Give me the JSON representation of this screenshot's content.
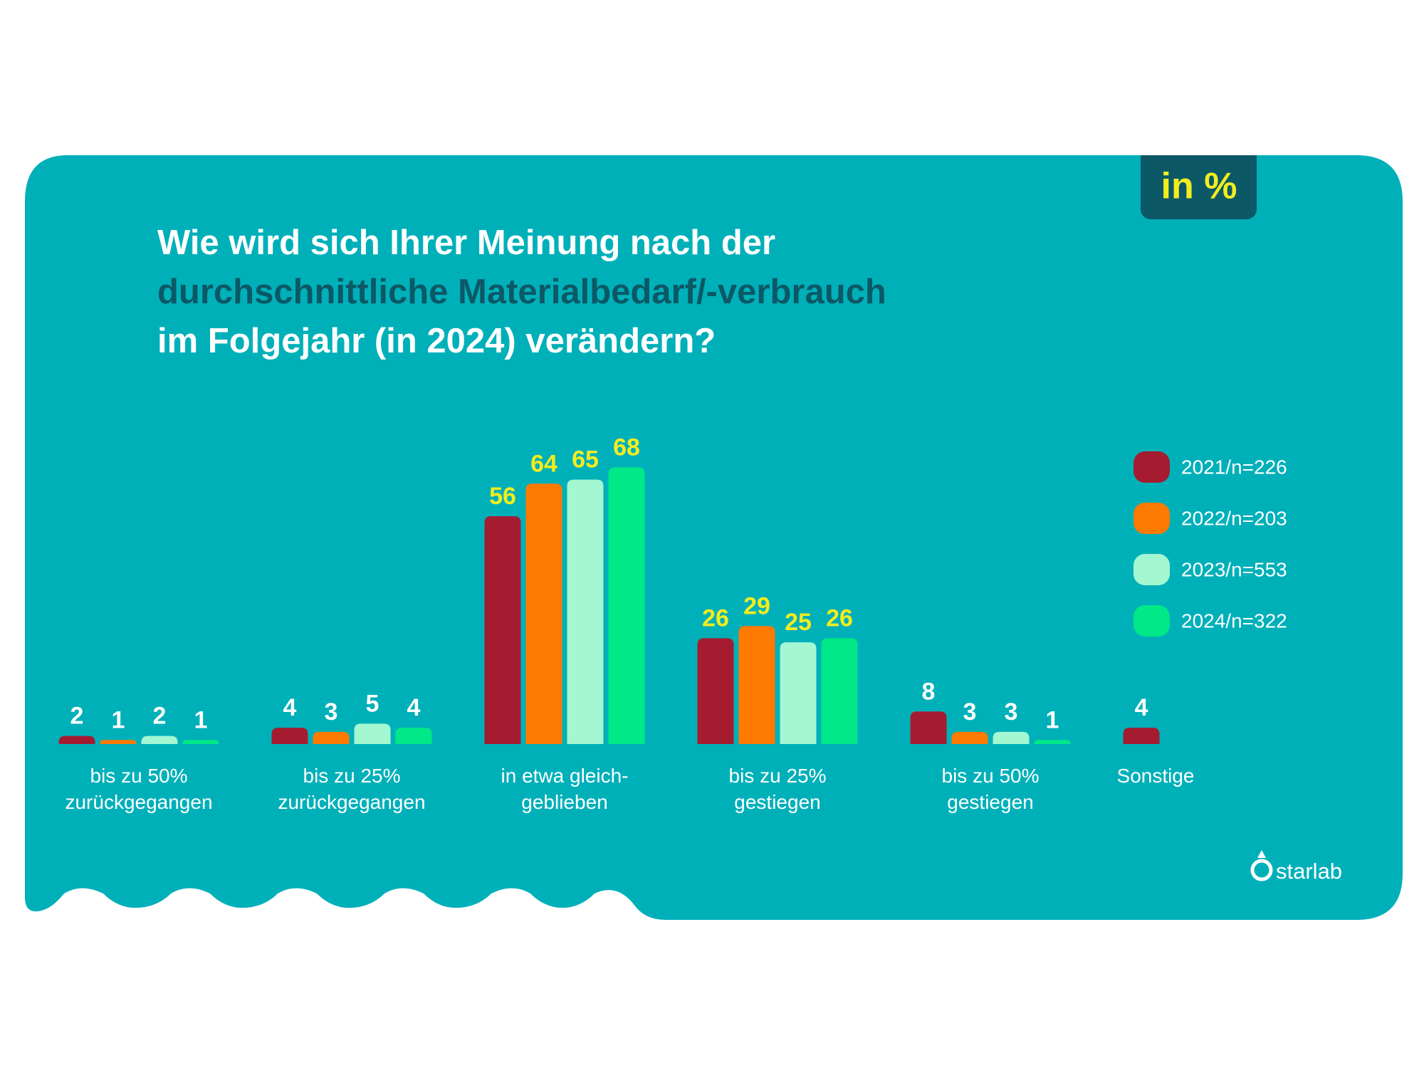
{
  "chart_data": {
    "type": "bar",
    "title": [
      "Wie wird sich Ihrer Meinung nach der",
      "durchschnittliche Materialbedarf/-verbrauch",
      "im Folgejahr (in 2024) verändern?"
    ],
    "title_colors": [
      "#ffffff",
      "#0c5866",
      "#ffffff"
    ],
    "unit_badge": "in %",
    "brand": "starlab",
    "categories": [
      "bis zu 50%\nzurückgegangen",
      "bis zu 25%\nzurückgegangen",
      "in etwa gleich-\ngeblieben",
      "bis zu 25%\ngestiegen",
      "bis zu 50%\ngestiegen",
      "Sonstige"
    ],
    "series": [
      {
        "name": "2021/n=226",
        "color": "#a51c30",
        "values": [
          2,
          4,
          56,
          26,
          8,
          4
        ]
      },
      {
        "name": "2022/n=203",
        "color": "#ff7a00",
        "values": [
          1,
          3,
          64,
          29,
          3,
          null
        ]
      },
      {
        "name": "2023/n=553",
        "color": "#a3f7d1",
        "values": [
          2,
          5,
          65,
          25,
          3,
          null
        ]
      },
      {
        "name": "2024/n=322",
        "color": "#00e887",
        "values": [
          1,
          4,
          68,
          26,
          1,
          null
        ]
      }
    ],
    "value_label_colors": [
      "#ffffff",
      "#ffffff",
      "#f2ed1f",
      "#f2ed1f",
      "#ffffff",
      "#ffffff"
    ],
    "ylim": [
      0,
      70
    ],
    "legend": "right"
  }
}
